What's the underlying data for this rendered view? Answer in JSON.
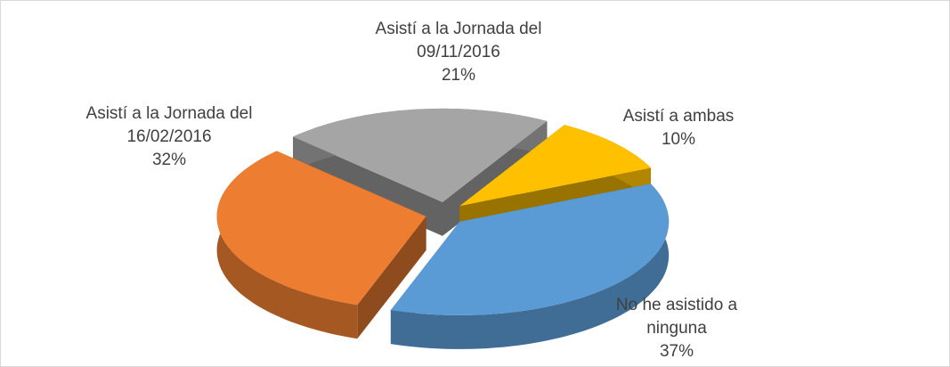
{
  "chart_data": {
    "type": "pie3d",
    "categories": [
      "Asistí a ambas",
      "No he asistido a ninguna",
      "Asistí a la Jornada del 16/02/2016",
      "Asistí a la Jornada del 09/11/2016"
    ],
    "values": [
      10,
      37,
      32,
      21
    ],
    "value_labels": [
      "10%",
      "37%",
      "32%",
      "21%"
    ],
    "colors": [
      "#ffc000",
      "#5b9bd5",
      "#ed7d31",
      "#a5a5a5"
    ]
  }
}
